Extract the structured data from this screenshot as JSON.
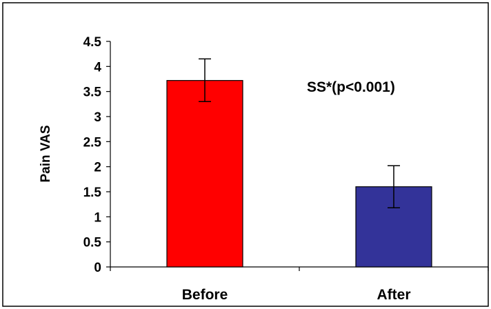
{
  "chart_data": {
    "type": "bar",
    "categories": [
      "Before",
      "After"
    ],
    "values": [
      3.72,
      1.6
    ],
    "error_bars": {
      "upper": [
        4.15,
        2.02
      ],
      "lower": [
        3.3,
        1.18
      ]
    },
    "colors": [
      "#ff0000",
      "#333399"
    ],
    "ylabel": "Pain VAS",
    "ylim": [
      0,
      4.5
    ],
    "yticks": [
      "0",
      "0.5",
      "1",
      "1.5",
      "2",
      "2.5",
      "3",
      "3.5",
      "4",
      "4.5"
    ],
    "annotation": "SS*(p<0.001)",
    "grid": false,
    "legend": "none"
  }
}
